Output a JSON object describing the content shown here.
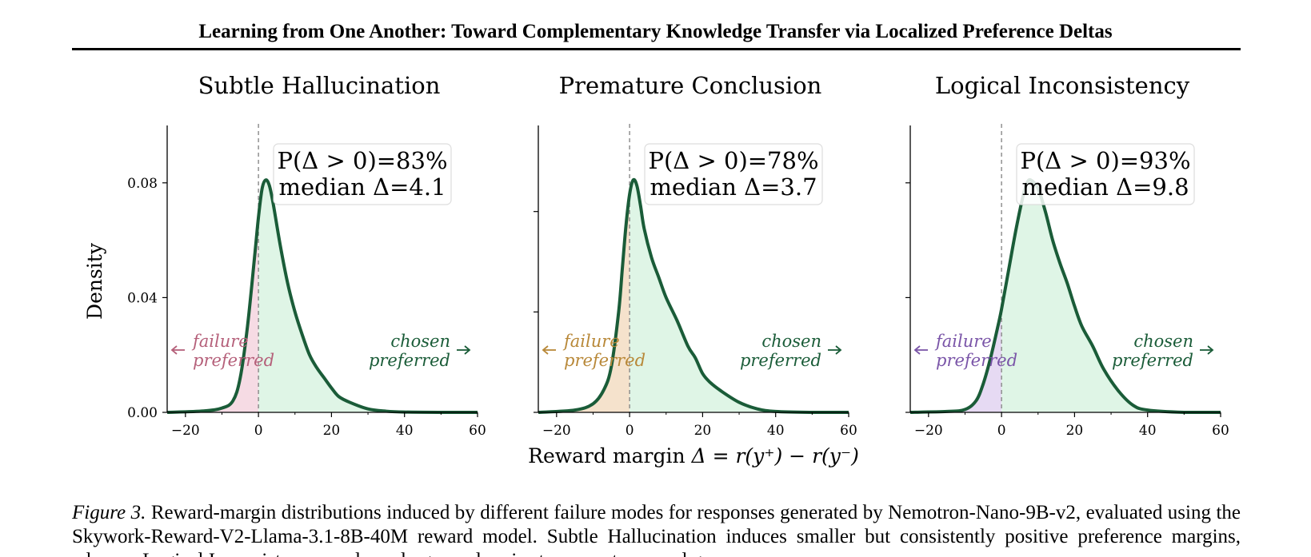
{
  "header": {
    "title": "Learning from One Another: Toward Complementary Knowledge Transfer via Localized Preference Deltas"
  },
  "figure": {
    "ylabel": "Density",
    "xlabel_prefix": "Reward margin ",
    "xlabel_math": "Δ = r(y⁺) − r(y⁻)",
    "y_ticks": [
      "0.00",
      "0.04",
      "0.08"
    ],
    "x_ticks": [
      "−20",
      "0",
      "20",
      "40",
      "60"
    ],
    "curve_color": "#1a5c38",
    "positive_fill": "#dff5e6"
  },
  "chart_data": [
    {
      "type": "area",
      "title": "Subtle Hallucination",
      "xlim": [
        -25,
        60
      ],
      "ylim": [
        0,
        0.1
      ],
      "annotation_line1": "P(Δ > 0)=83%",
      "annotation_line2": "median Δ=4.1",
      "left_label_1": "failure",
      "left_label_2": "preferred",
      "right_label_1": "chosen",
      "right_label_2": "preferred",
      "negative_color": "#b5607a",
      "negative_fill": "#f6dbe4",
      "x": [
        -25,
        -15,
        -10,
        -7,
        -5,
        -3,
        -1,
        0,
        1,
        2,
        3,
        4,
        6,
        8,
        10,
        12,
        14,
        16,
        18,
        20,
        22,
        25,
        30,
        35,
        40,
        50,
        60
      ],
      "y": [
        0.0,
        0.0005,
        0.0015,
        0.004,
        0.012,
        0.03,
        0.055,
        0.068,
        0.078,
        0.081,
        0.079,
        0.073,
        0.058,
        0.045,
        0.035,
        0.027,
        0.02,
        0.0155,
        0.012,
        0.0085,
        0.0055,
        0.0035,
        0.0012,
        0.0004,
        0.0001,
        0.0,
        0.0
      ]
    },
    {
      "type": "area",
      "title": "Premature Conclusion",
      "xlim": [
        -25,
        60
      ],
      "ylim": [
        0,
        0.1
      ],
      "annotation_line1": "P(Δ > 0)=78%",
      "annotation_line2": "median Δ=3.7",
      "left_label_1": "failure",
      "left_label_2": "preferred",
      "right_label_1": "chosen",
      "right_label_2": "preferred",
      "negative_color": "#b88838",
      "negative_fill": "#f5e2cc",
      "x": [
        -25,
        -15,
        -10,
        -7,
        -5,
        -3,
        -2,
        -1,
        0,
        1,
        2,
        3,
        4,
        6,
        8,
        10,
        13,
        16,
        18,
        20,
        22,
        25,
        30,
        35,
        40,
        50,
        60
      ],
      "y": [
        0.0,
        0.0008,
        0.003,
        0.008,
        0.016,
        0.035,
        0.05,
        0.065,
        0.076,
        0.081,
        0.079,
        0.072,
        0.064,
        0.054,
        0.047,
        0.04,
        0.032,
        0.023,
        0.019,
        0.0135,
        0.0105,
        0.0075,
        0.0035,
        0.0012,
        0.0003,
        0.0,
        0.0
      ]
    },
    {
      "type": "area",
      "title": "Logical Inconsistency",
      "xlim": [
        -25,
        60
      ],
      "ylim": [
        0,
        0.1
      ],
      "annotation_line1": "P(Δ > 0)=93%",
      "annotation_line2": "median Δ=9.8",
      "left_label_1": "failure",
      "left_label_2": "preferred",
      "right_label_1": "chosen",
      "right_label_2": "preferred",
      "negative_color": "#7a55a8",
      "negative_fill": "#e6daf3",
      "x": [
        -25,
        -15,
        -10,
        -7,
        -5,
        -3,
        -1,
        0,
        2,
        4,
        6,
        7,
        8,
        10,
        12,
        14,
        16,
        18,
        20,
        22,
        25,
        28,
        32,
        36,
        40,
        50,
        60
      ],
      "y": [
        0.0,
        0.0003,
        0.001,
        0.004,
        0.01,
        0.019,
        0.03,
        0.036,
        0.05,
        0.064,
        0.076,
        0.08,
        0.081,
        0.078,
        0.07,
        0.06,
        0.052,
        0.045,
        0.037,
        0.03,
        0.023,
        0.015,
        0.0075,
        0.0025,
        0.0008,
        0.0,
        0.0
      ]
    }
  ],
  "caption": {
    "label": "Figure 3.",
    "text": " Reward-margin distributions induced by different failure modes for responses generated by Nemotron-Nano-9B-v2, evaluated using the Skywork-Reward-V2-Llama-3.1-8B-40M reward model.  Subtle Hallucination induces smaller but consistently positive preference margins, whereas Logical Inconsistency produces larger and easier-to-separate reward gaps."
  }
}
